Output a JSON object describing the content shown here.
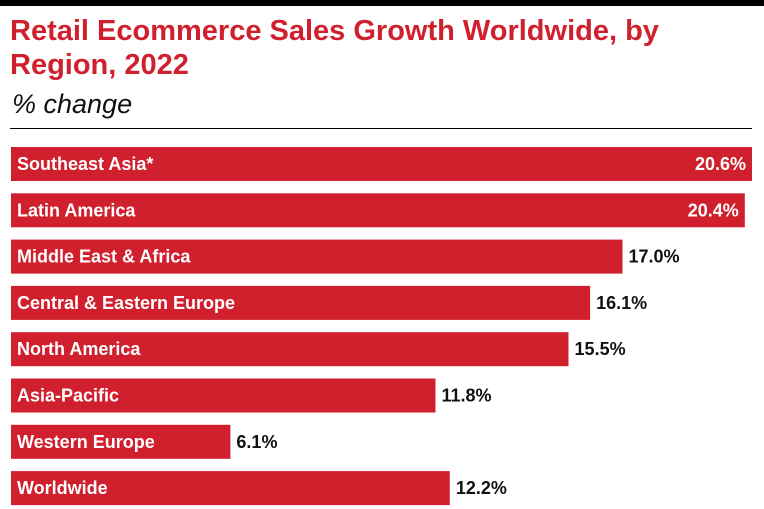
{
  "chart_data": {
    "type": "bar",
    "orientation": "horizontal",
    "title": "Retail Ecommerce Sales Growth Worldwide, by Region, 2022",
    "subtitle": "% change",
    "categories": [
      "Southeast Asia*",
      "Latin America",
      "Middle East & Africa",
      "Central & Eastern Europe",
      "North America",
      "Asia-Pacific",
      "Western Europe",
      "Worldwide"
    ],
    "values": [
      20.6,
      20.4,
      17.0,
      16.1,
      15.5,
      11.8,
      6.1,
      12.2
    ],
    "value_labels": [
      "20.6%",
      "20.4%",
      "17.0%",
      "16.1%",
      "15.5%",
      "11.8%",
      "6.1%",
      "12.2%"
    ],
    "xlim": [
      0,
      20.6
    ],
    "grid": false,
    "legend": "none",
    "colors": {
      "bar": "#d0202e",
      "title": "#d0202e",
      "text": "#111111",
      "bar_label": "#ffffff"
    }
  }
}
